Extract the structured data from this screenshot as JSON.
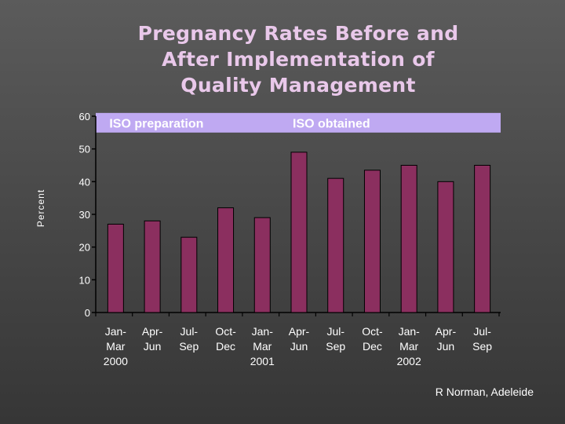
{
  "title_lines": [
    "Pregnancy Rates Before and",
    "After Implementation of",
    "Quality Management"
  ],
  "credit": "R Norman, Adeleide",
  "colors": {
    "bar": "#8b2f5f",
    "band": "#bfa9f2",
    "plot_bg": "#5b5b5b",
    "title": "#e9c8ea",
    "axis": "#000000",
    "text": "#ffffff"
  },
  "chart_data": {
    "type": "bar",
    "title": "Pregnancy Rates Before and After Implementation of Quality Management",
    "xlabel": "",
    "ylabel": "Percent",
    "ylim": [
      0,
      60
    ],
    "yticks": [
      0,
      10,
      20,
      30,
      40,
      50,
      60
    ],
    "grid": false,
    "categories": [
      [
        "Jan-",
        "Mar",
        "2000"
      ],
      [
        "Apr-",
        "Jun",
        ""
      ],
      [
        "Jul-",
        "Sep",
        ""
      ],
      [
        "Oct-",
        "Dec",
        ""
      ],
      [
        "Jan-",
        "Mar",
        "2001"
      ],
      [
        "Apr-",
        "Jun",
        ""
      ],
      [
        "Jul-",
        "Sep",
        ""
      ],
      [
        "Oct-",
        "Dec",
        ""
      ],
      [
        "Jan-",
        "Mar",
        "2002"
      ],
      [
        "Apr-",
        "Jun",
        ""
      ],
      [
        "Jul-",
        "Sep",
        ""
      ]
    ],
    "values": [
      27,
      28,
      23,
      32,
      29,
      49,
      41,
      43.5,
      45,
      40,
      45
    ],
    "band_range": [
      55,
      61
    ],
    "annotations": [
      {
        "text": "ISO preparation",
        "x_category_index": 0
      },
      {
        "text": "ISO obtained",
        "x_category_index": 5
      }
    ]
  }
}
